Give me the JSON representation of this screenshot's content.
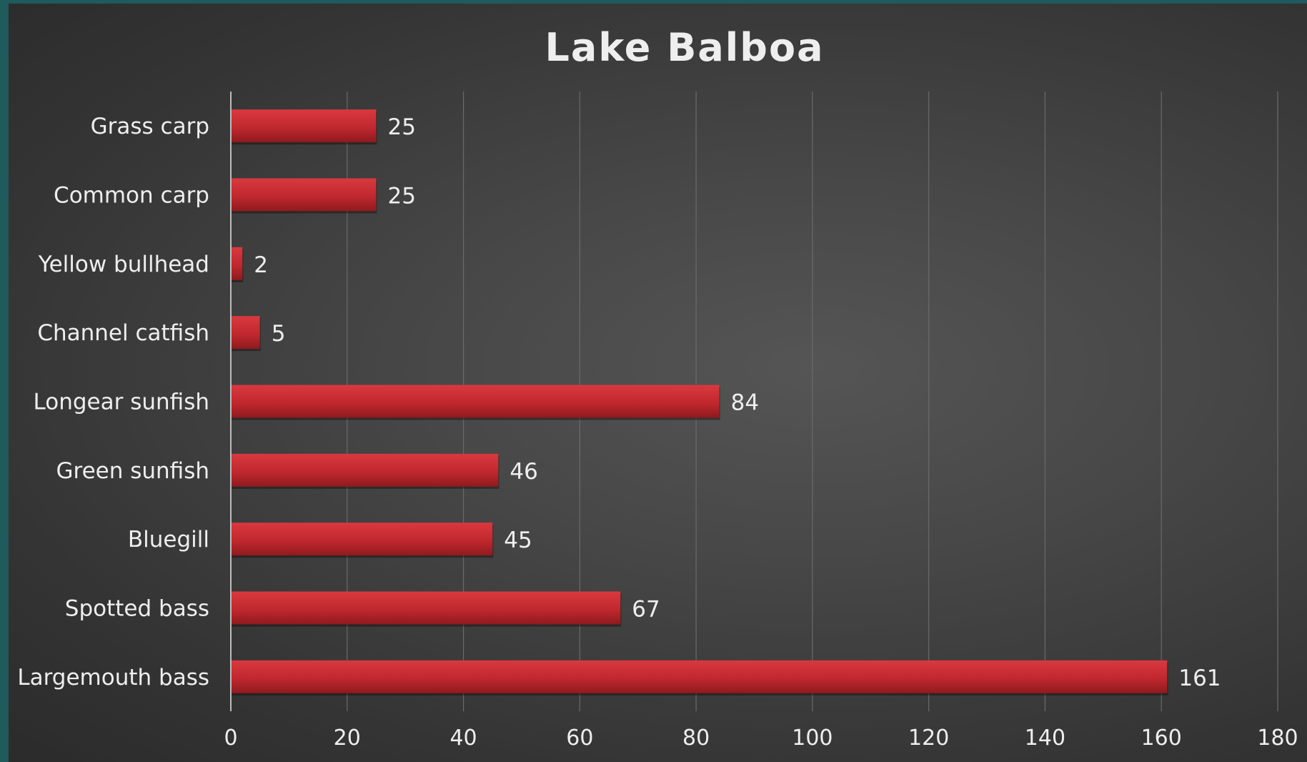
{
  "colors": {
    "bar": "#c0282e",
    "bar_light": "#d9393f",
    "bar_dark": "#8e1a1e",
    "text": "#eeeeee",
    "grid": "#6a6a6a",
    "axis": "#bdbdbd"
  },
  "chart_data": {
    "type": "bar",
    "orientation": "horizontal",
    "title": "Lake Balboa",
    "categories": [
      "Grass carp",
      "Common carp",
      "Yellow bullhead",
      "Channel catfish",
      "Longear sunfish",
      "Green sunfish",
      "Bluegill",
      "Spotted bass",
      "Largemouth bass"
    ],
    "values": [
      25,
      25,
      2,
      5,
      84,
      46,
      45,
      67,
      161
    ],
    "xlim": [
      0,
      180
    ],
    "xticks": [
      "0",
      "20",
      "40",
      "60",
      "80",
      "100",
      "120",
      "140",
      "160",
      "180"
    ],
    "grid": true,
    "data_labels": true
  }
}
